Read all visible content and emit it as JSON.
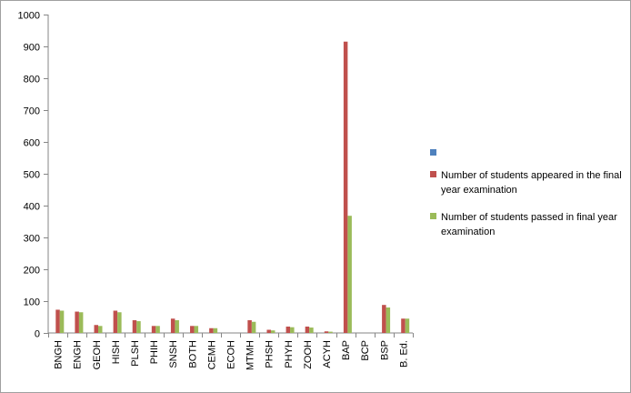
{
  "chart_data": {
    "type": "bar",
    "categories": [
      "BNGH",
      "ENGH",
      "GEOH",
      "HISH",
      "PLSH",
      "PHIH",
      "SNSH",
      "BOTH",
      "CEMH",
      "ECOH",
      "MTMH",
      "PHSH",
      "PHYH",
      "ZOOH",
      "ACYH",
      "BAP",
      "BCP",
      "BSP",
      "B. Ed."
    ],
    "series": [
      {
        "name": "",
        "color": "#4f81bd",
        "values": [
          0,
          0,
          0,
          0,
          0,
          0,
          0,
          0,
          0,
          0,
          0,
          0,
          0,
          0,
          0,
          0,
          0,
          0,
          0
        ]
      },
      {
        "name": "Number of students appeared in the final year examination",
        "color": "#c0504d",
        "values": [
          73,
          67,
          25,
          70,
          40,
          22,
          45,
          22,
          15,
          0,
          40,
          10,
          20,
          20,
          5,
          915,
          0,
          88,
          45
        ]
      },
      {
        "name": "Number of students passed in final year examination",
        "color": "#9bbb59",
        "values": [
          70,
          65,
          22,
          65,
          37,
          22,
          40,
          22,
          15,
          0,
          35,
          8,
          18,
          17,
          4,
          368,
          0,
          80,
          45
        ]
      }
    ],
    "ylim": [
      0,
      1000
    ],
    "yticks": [
      0,
      100,
      200,
      300,
      400,
      500,
      600,
      700,
      800,
      900,
      1000
    ],
    "grid": false,
    "legend_position": "right"
  }
}
